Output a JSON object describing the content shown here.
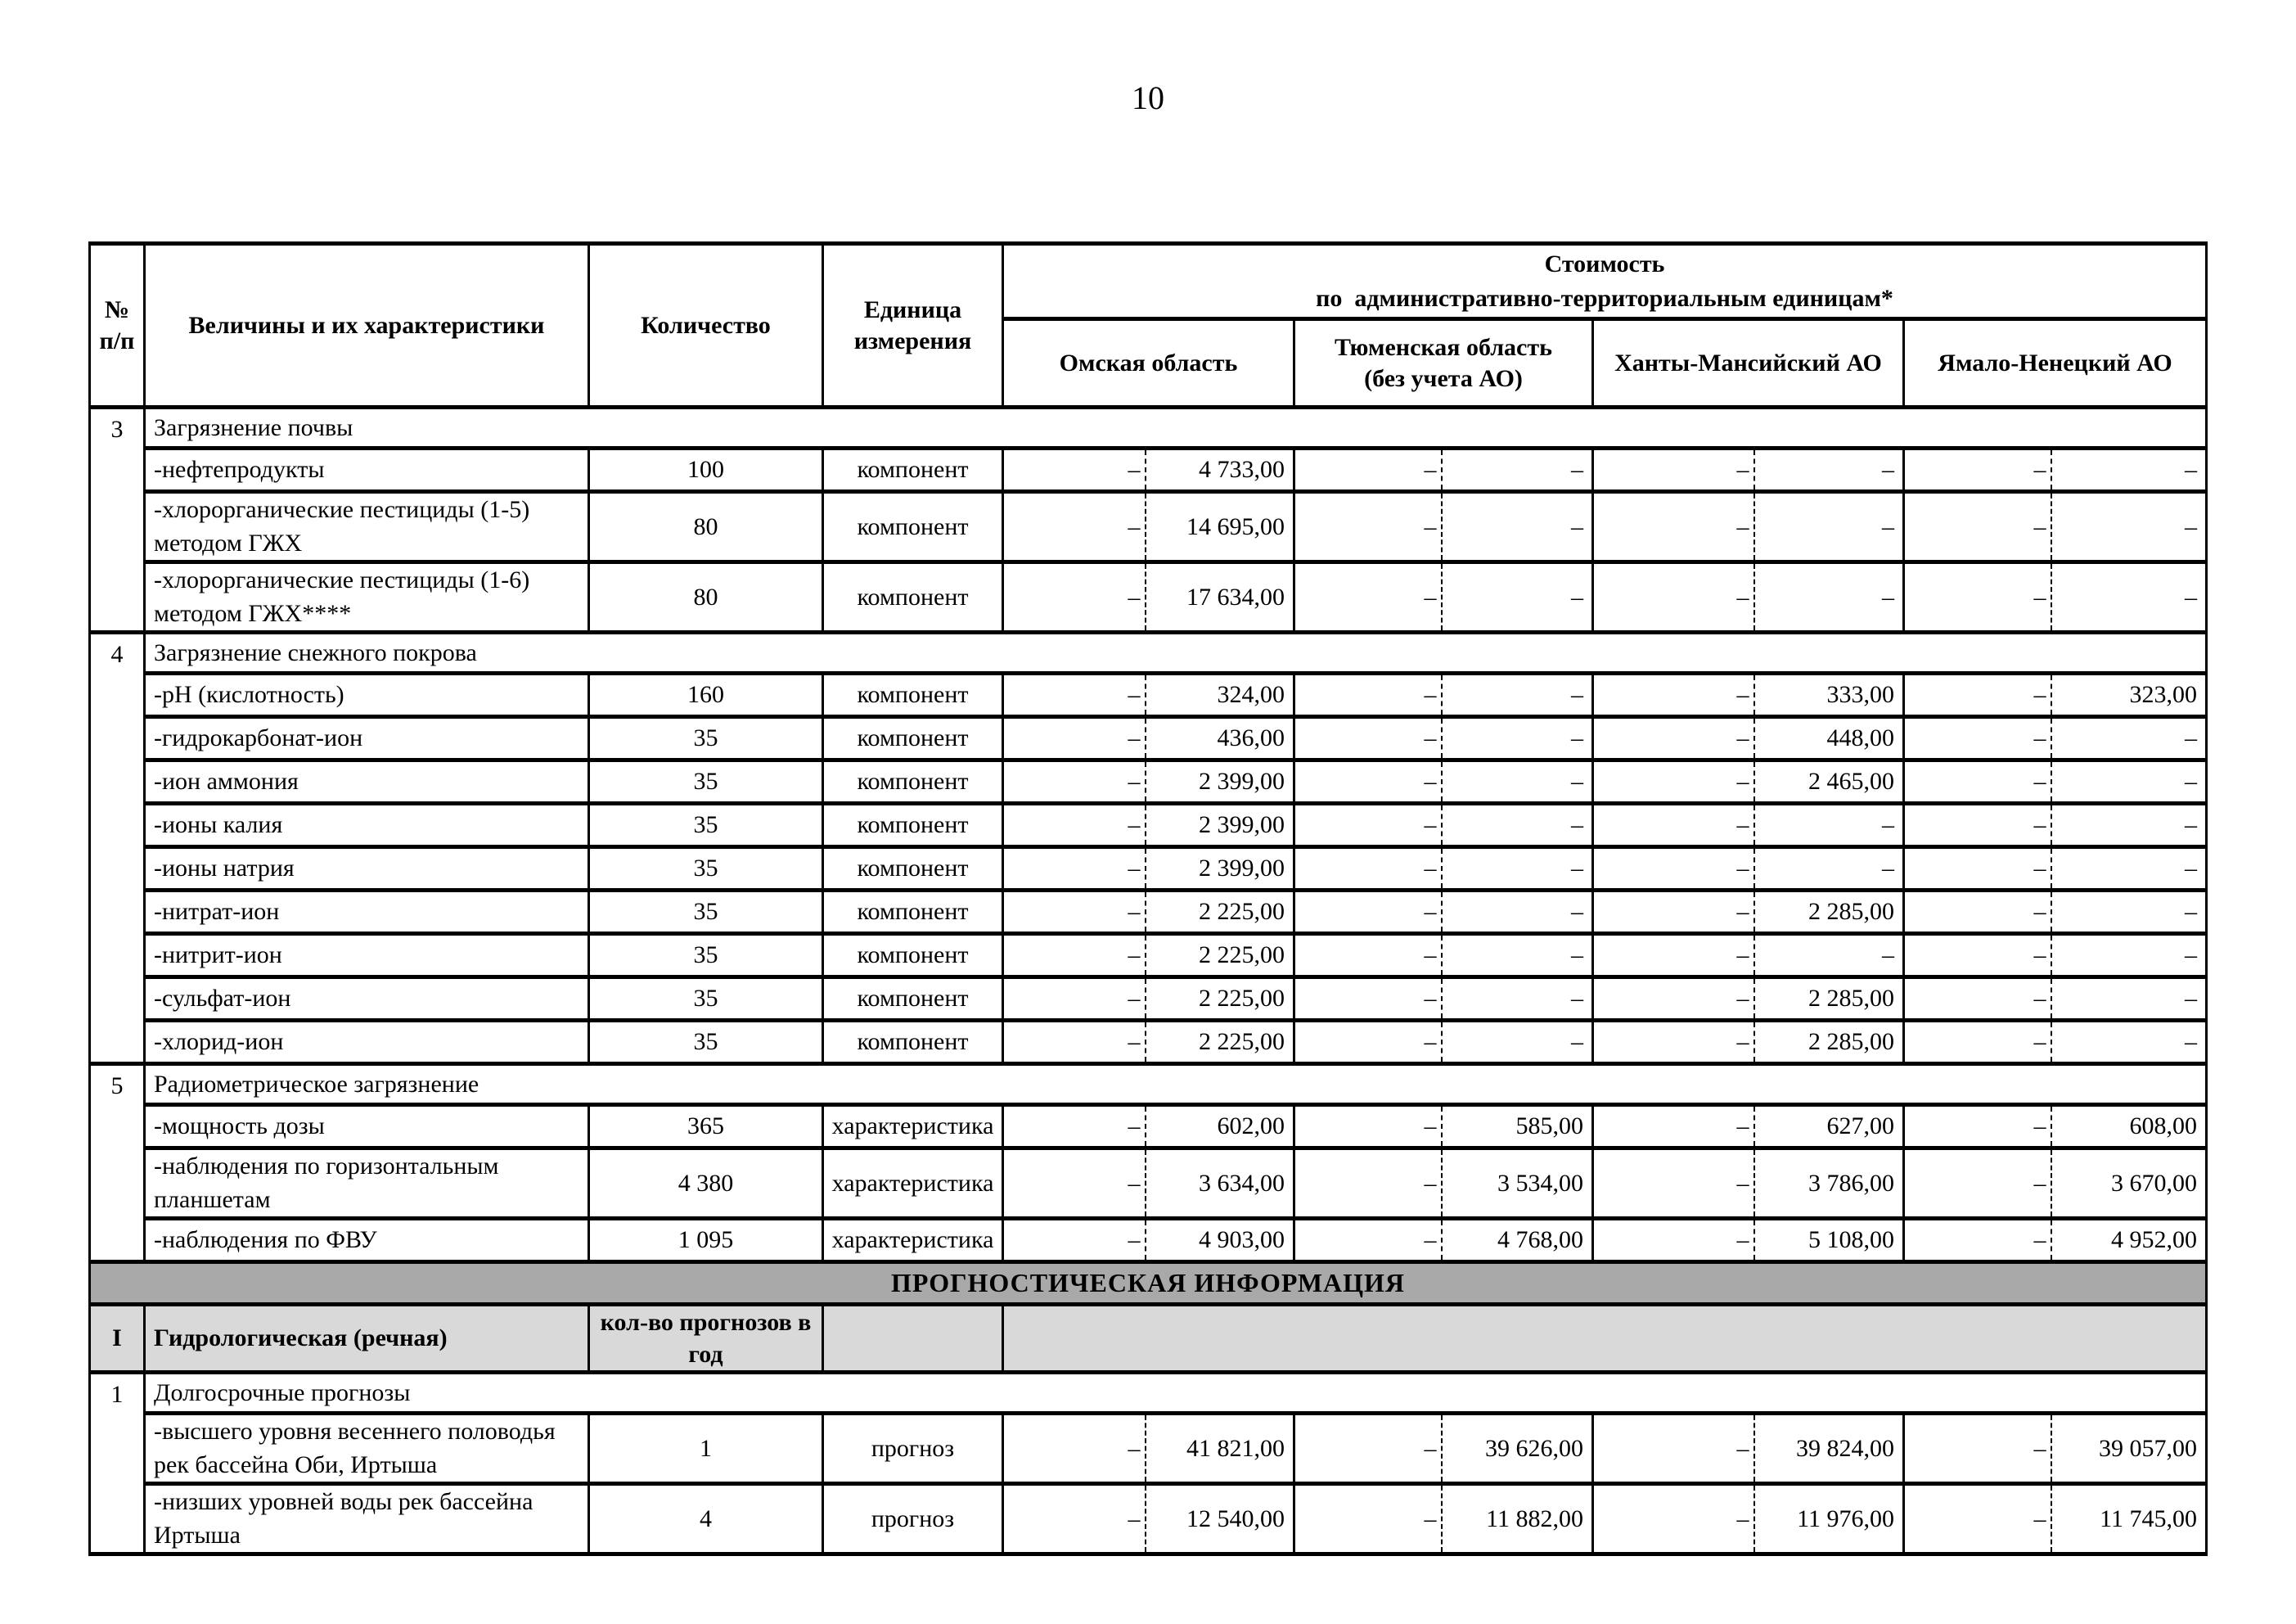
{
  "page_number": "10",
  "table": {
    "colors": {
      "banner_bg": "#a9a9a9",
      "subheader_bg": "#d9d9d9"
    },
    "header": {
      "num_line1": "№",
      "num_line2": "п/п",
      "characteristics": "Величины и их характеристики",
      "quantity": "Количество",
      "unit_line1": "Единица",
      "unit_line2": "измерения",
      "cost_line1": "Стоимость",
      "cost_line2": "по  административно-территориальным единицам*",
      "regions": [
        {
          "label": "Омская область"
        },
        {
          "label": "Тюменская область (без учета АО)",
          "line1": "Тюменская область",
          "line2": "(без учета АО)"
        },
        {
          "label": "Ханты-Мансийский АО"
        },
        {
          "label": "Ямало-Ненецкий АО"
        }
      ]
    },
    "sections": [
      {
        "num": "3",
        "title": "Загрязнение почвы",
        "rows": [
          {
            "name": "-нефтепродукты",
            "qty": "100",
            "unit": "компонент",
            "tall": false,
            "values": [
              "–",
              "4 733,00",
              "–",
              "–",
              "–",
              "–",
              "–",
              "–"
            ]
          },
          {
            "name": "-хлорорганические пестициды (1-5) методом ГЖХ",
            "qty": "80",
            "unit": "компонент",
            "tall": true,
            "values": [
              "–",
              "14 695,00",
              "–",
              "–",
              "–",
              "–",
              "–",
              "–"
            ]
          },
          {
            "name": "-хлорорганические пестициды (1-6) методом ГЖХ****",
            "qty": "80",
            "unit": "компонент",
            "tall": true,
            "values": [
              "–",
              "17 634,00",
              "–",
              "–",
              "–",
              "–",
              "–",
              "–"
            ]
          }
        ]
      },
      {
        "num": "4",
        "title": "Загрязнение снежного покрова",
        "rows": [
          {
            "name": "-pH (кислотность)",
            "qty": "160",
            "unit": "компонент",
            "tall": false,
            "values": [
              "–",
              "324,00",
              "–",
              "–",
              "–",
              "333,00",
              "–",
              "323,00"
            ]
          },
          {
            "name": "-гидрокарбонат-ион",
            "qty": "35",
            "unit": "компонент",
            "tall": false,
            "values": [
              "–",
              "436,00",
              "–",
              "–",
              "–",
              "448,00",
              "–",
              "–"
            ]
          },
          {
            "name": "-ион аммония",
            "qty": "35",
            "unit": "компонент",
            "tall": false,
            "values": [
              "–",
              "2 399,00",
              "–",
              "–",
              "–",
              "2 465,00",
              "–",
              "–"
            ]
          },
          {
            "name": "-ионы калия",
            "qty": "35",
            "unit": "компонент",
            "tall": false,
            "values": [
              "–",
              "2 399,00",
              "–",
              "–",
              "–",
              "–",
              "–",
              "–"
            ]
          },
          {
            "name": "-ионы натрия",
            "qty": "35",
            "unit": "компонент",
            "tall": false,
            "values": [
              "–",
              "2 399,00",
              "–",
              "–",
              "–",
              "–",
              "–",
              "–"
            ]
          },
          {
            "name": "-нитрат-ион",
            "qty": "35",
            "unit": "компонент",
            "tall": false,
            "values": [
              "–",
              "2 225,00",
              "–",
              "–",
              "–",
              "2 285,00",
              "–",
              "–"
            ]
          },
          {
            "name": "-нитрит-ион",
            "qty": "35",
            "unit": "компонент",
            "tall": false,
            "values": [
              "–",
              "2 225,00",
              "–",
              "–",
              "–",
              "–",
              "–",
              "–"
            ]
          },
          {
            "name": "-сульфат-ион",
            "qty": "35",
            "unit": "компонент",
            "tall": false,
            "values": [
              "–",
              "2 225,00",
              "–",
              "–",
              "–",
              "2 285,00",
              "–",
              "–"
            ]
          },
          {
            "name": "-хлорид-ион",
            "qty": "35",
            "unit": "компонент",
            "tall": false,
            "values": [
              "–",
              "2 225,00",
              "–",
              "–",
              "–",
              "2 285,00",
              "–",
              "–"
            ]
          }
        ]
      },
      {
        "num": "5",
        "title": "Радиометрическое загрязнение",
        "rows": [
          {
            "name": "-мощность дозы",
            "qty": "365",
            "unit": "характеристика",
            "tall": false,
            "values": [
              "–",
              "602,00",
              "–",
              "585,00",
              "–",
              "627,00",
              "–",
              "608,00"
            ]
          },
          {
            "name": "-наблюдения по горизонтальным планшетам",
            "qty": "4 380",
            "unit": "характеристика",
            "tall": true,
            "values": [
              "–",
              "3 634,00",
              "–",
              "3 534,00",
              "–",
              "3 786,00",
              "–",
              "3 670,00"
            ]
          },
          {
            "name": "-наблюдения по ФВУ",
            "qty": "1 095",
            "unit": "характеристика",
            "tall": false,
            "values": [
              "–",
              "4 903,00",
              "–",
              "4 768,00",
              "–",
              "5 108,00",
              "–",
              "4 952,00"
            ]
          }
        ]
      }
    ],
    "banner": "ПРОГНОСТИЧЕСКАЯ ИНФОРМАЦИЯ",
    "forecast_header": {
      "num": "I",
      "title": "Гидрологическая (речная)",
      "quantity": "кол-во прогнозов в год"
    },
    "forecast_sections": [
      {
        "num": "1",
        "title": "Долгосрочные прогнозы",
        "rows": [
          {
            "name": "-высшего уровня весеннего половодья рек бассейна Оби, Иртыша",
            "qty": "1",
            "unit": "прогноз",
            "tall": true,
            "values": [
              "–",
              "41 821,00",
              "–",
              "39 626,00",
              "–",
              "39 824,00",
              "–",
              "39 057,00"
            ]
          },
          {
            "name": "-низших уровней воды рек бассейна Иртыша",
            "qty": "4",
            "unit": "прогноз",
            "tall": true,
            "values": [
              "–",
              "12 540,00",
              "–",
              "11 882,00",
              "–",
              "11 976,00",
              "–",
              "11 745,00"
            ]
          }
        ]
      }
    ]
  }
}
